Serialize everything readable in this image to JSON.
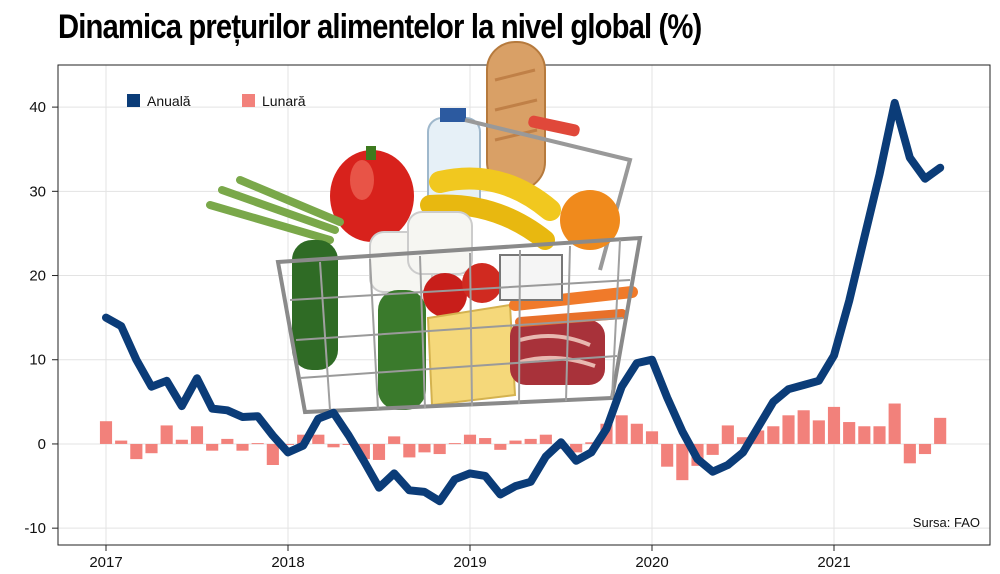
{
  "chart_data": {
    "type": "line",
    "title": "Dinamica prețurilor alimentelor la nivel global (%)",
    "source": "Sursa: FAO",
    "ylim": [
      -12,
      45
    ],
    "yticks": [
      40,
      30,
      20,
      10,
      0,
      -10
    ],
    "x_tick_labels": [
      "2017",
      "2018",
      "2019",
      "2020",
      "2021"
    ],
    "legend_position": "top-left",
    "grid": true,
    "series": [
      {
        "name": "Anuală",
        "kind": "line",
        "color": "#0b3c78",
        "x": [
          "2017-01",
          "2017-02",
          "2017-03",
          "2017-04",
          "2017-05",
          "2017-06",
          "2017-07",
          "2017-08",
          "2017-09",
          "2017-10",
          "2017-11",
          "2017-12",
          "2018-01",
          "2018-02",
          "2018-03",
          "2018-04",
          "2018-05",
          "2018-06",
          "2018-07",
          "2018-08",
          "2018-09",
          "2018-10",
          "2018-11",
          "2018-12",
          "2019-01",
          "2019-02",
          "2019-03",
          "2019-04",
          "2019-05",
          "2019-06",
          "2019-07",
          "2019-08",
          "2019-09",
          "2019-10",
          "2019-11",
          "2019-12",
          "2020-01",
          "2020-02",
          "2020-03",
          "2020-04",
          "2020-05",
          "2020-06",
          "2020-07",
          "2020-08",
          "2020-09",
          "2020-10",
          "2020-11",
          "2020-12",
          "2021-01",
          "2021-02",
          "2021-03",
          "2021-04",
          "2021-05",
          "2021-06",
          "2021-07",
          "2021-08"
        ],
        "values": [
          15,
          14,
          10,
          6.8,
          7.5,
          4.5,
          7.8,
          4.2,
          4,
          3.2,
          3.3,
          1,
          -1,
          -0.2,
          3,
          3.7,
          1,
          -2,
          -5.2,
          -3.5,
          -5.5,
          -5.7,
          -6.8,
          -4.2,
          -3.5,
          -3.8,
          -6,
          -5,
          -4.5,
          -1.5,
          0.2,
          -2,
          -1,
          1.8,
          6.8,
          9.6,
          10,
          5.5,
          1.5,
          -1.8,
          -3.3,
          -2.5,
          -1,
          2,
          5,
          6.5,
          7,
          7.5,
          10.5,
          17,
          24.5,
          32,
          40.5,
          34,
          31.5,
          32.8
        ]
      },
      {
        "name": "Lunară",
        "kind": "bar",
        "color": "#f2817b",
        "x": [
          "2017-01",
          "2017-02",
          "2017-03",
          "2017-04",
          "2017-05",
          "2017-06",
          "2017-07",
          "2017-08",
          "2017-09",
          "2017-10",
          "2017-11",
          "2017-12",
          "2018-01",
          "2018-02",
          "2018-03",
          "2018-04",
          "2018-05",
          "2018-06",
          "2018-07",
          "2018-08",
          "2018-09",
          "2018-10",
          "2018-11",
          "2018-12",
          "2019-01",
          "2019-02",
          "2019-03",
          "2019-04",
          "2019-05",
          "2019-06",
          "2019-07",
          "2019-08",
          "2019-09",
          "2019-10",
          "2019-11",
          "2019-12",
          "2020-01",
          "2020-02",
          "2020-03",
          "2020-04",
          "2020-05",
          "2020-06",
          "2020-07",
          "2020-08",
          "2020-09",
          "2020-10",
          "2020-11",
          "2020-12",
          "2021-01",
          "2021-02",
          "2021-03",
          "2021-04",
          "2021-05",
          "2021-06",
          "2021-07",
          "2021-08"
        ],
        "values": [
          2.7,
          0.4,
          -1.8,
          -1.1,
          2.2,
          0.5,
          2.1,
          -0.8,
          0.6,
          -0.8,
          0.1,
          -2.5,
          -0.1,
          1.1,
          1.1,
          -0.4,
          0,
          -1.8,
          -1.9,
          0.9,
          -1.6,
          -1,
          -1.2,
          0.1,
          1.1,
          0.7,
          -0.7,
          0.4,
          0.6,
          1.1,
          -0.6,
          -1,
          0.2,
          2.4,
          3.4,
          2.4,
          1.5,
          -2.7,
          -4.3,
          -2.6,
          -1.3,
          2.2,
          0.8,
          1.6,
          2.1,
          3.4,
          4,
          2.8,
          4.4,
          2.6,
          2.1,
          2.1,
          4.8,
          -2.3,
          -1.2,
          3.1
        ]
      }
    ]
  }
}
